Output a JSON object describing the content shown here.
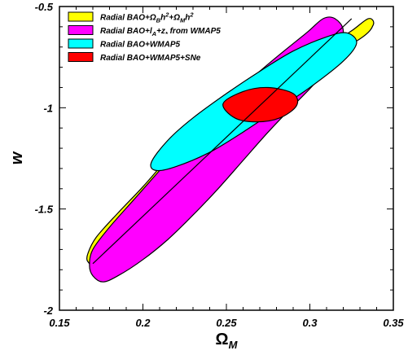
{
  "chart_data": {
    "type": "contour",
    "title": "",
    "xlabel": "Ω",
    "xlabel_sub": "M",
    "ylabel": "w",
    "xlim": [
      0.15,
      0.35
    ],
    "ylim": [
      -2,
      -0.5
    ],
    "xticks": [
      0.15,
      0.2,
      0.25,
      0.3,
      0.35
    ],
    "yticks": [
      -2,
      -1.5,
      -1,
      -0.5
    ],
    "xtick_labels": [
      "0.15",
      "0.2",
      "0.25",
      "0.3",
      "0.35"
    ],
    "ytick_labels": [
      "-2",
      "-1.5",
      "-1",
      "-0.5"
    ],
    "legend_position": "top-left",
    "series": [
      {
        "name": "Radial BAO+Ω_Bh²+Ω_Mh²",
        "legend": [
          {
            "t": "Radial BAO+Ω"
          },
          {
            "t": "B",
            "sub": true
          },
          {
            "t": "h"
          },
          {
            "t": "2",
            "sup": true
          },
          {
            "t": "+Ω"
          },
          {
            "t": "M",
            "sub": true
          },
          {
            "t": "h"
          },
          {
            "t": "2",
            "sup": true
          }
        ],
        "color": "#ffff00",
        "points": [
          [
            0.167,
            -1.72
          ],
          [
            0.172,
            -1.64
          ],
          [
            0.185,
            -1.52
          ],
          [
            0.2,
            -1.39
          ],
          [
            0.215,
            -1.25
          ],
          [
            0.23,
            -1.13
          ],
          [
            0.25,
            -0.99
          ],
          [
            0.27,
            -0.88
          ],
          [
            0.29,
            -0.78
          ],
          [
            0.31,
            -0.7
          ],
          [
            0.325,
            -0.62
          ],
          [
            0.335,
            -0.56
          ],
          [
            0.338,
            -0.59
          ],
          [
            0.33,
            -0.66
          ],
          [
            0.3,
            -0.8
          ],
          [
            0.27,
            -0.96
          ],
          [
            0.245,
            -1.12
          ],
          [
            0.22,
            -1.32
          ],
          [
            0.2,
            -1.5
          ],
          [
            0.185,
            -1.64
          ],
          [
            0.172,
            -1.77
          ],
          [
            0.167,
            -1.76
          ]
        ]
      },
      {
        "name": "Radial BAO+l_A+z, from WMAP5",
        "legend": [
          {
            "t": "Radial BAO+l"
          },
          {
            "t": "A",
            "sub": true
          },
          {
            "t": "+z"
          },
          {
            "t": "*",
            "sub": true
          },
          {
            "t": " from WMAP5"
          }
        ],
        "color": "#ff00ff",
        "points": [
          [
            0.168,
            -1.78
          ],
          [
            0.17,
            -1.7
          ],
          [
            0.18,
            -1.59
          ],
          [
            0.195,
            -1.45
          ],
          [
            0.21,
            -1.31
          ],
          [
            0.225,
            -1.17
          ],
          [
            0.24,
            -1.03
          ],
          [
            0.26,
            -0.89
          ],
          [
            0.28,
            -0.75
          ],
          [
            0.298,
            -0.63
          ],
          [
            0.308,
            -0.56
          ],
          [
            0.315,
            -0.56
          ],
          [
            0.32,
            -0.62
          ],
          [
            0.316,
            -0.73
          ],
          [
            0.305,
            -0.86
          ],
          [
            0.29,
            -0.99
          ],
          [
            0.275,
            -1.12
          ],
          [
            0.26,
            -1.26
          ],
          [
            0.245,
            -1.4
          ],
          [
            0.23,
            -1.53
          ],
          [
            0.215,
            -1.65
          ],
          [
            0.2,
            -1.75
          ],
          [
            0.185,
            -1.83
          ],
          [
            0.176,
            -1.86
          ],
          [
            0.17,
            -1.83
          ]
        ]
      },
      {
        "name": "Radial BAO+WMAP5",
        "legend": [
          {
            "t": "Radial BAO+WMAP5"
          }
        ],
        "color": "#00ffff",
        "points": [
          [
            0.205,
            -1.27
          ],
          [
            0.215,
            -1.16
          ],
          [
            0.23,
            -1.05
          ],
          [
            0.25,
            -0.93
          ],
          [
            0.27,
            -0.82
          ],
          [
            0.29,
            -0.72
          ],
          [
            0.31,
            -0.65
          ],
          [
            0.322,
            -0.63
          ],
          [
            0.328,
            -0.68
          ],
          [
            0.32,
            -0.77
          ],
          [
            0.3,
            -0.9
          ],
          [
            0.28,
            -1.01
          ],
          [
            0.26,
            -1.12
          ],
          [
            0.24,
            -1.22
          ],
          [
            0.22,
            -1.29
          ],
          [
            0.208,
            -1.31
          ]
        ]
      },
      {
        "name": "Radial BAO+WMAP5+SNe",
        "legend": [
          {
            "t": "Radial BAO+WMAP5+SNe"
          }
        ],
        "color": "#ff0000",
        "points": [
          [
            0.248,
            -0.98
          ],
          [
            0.26,
            -0.92
          ],
          [
            0.275,
            -0.9
          ],
          [
            0.29,
            -0.93
          ],
          [
            0.292,
            -0.99
          ],
          [
            0.282,
            -1.05
          ],
          [
            0.268,
            -1.07
          ],
          [
            0.255,
            -1.05
          ]
        ]
      }
    ],
    "diagonal_line": {
      "x": [
        0.17,
        0.325
      ],
      "y": [
        -1.77,
        -0.56
      ],
      "color": "#000000"
    }
  }
}
